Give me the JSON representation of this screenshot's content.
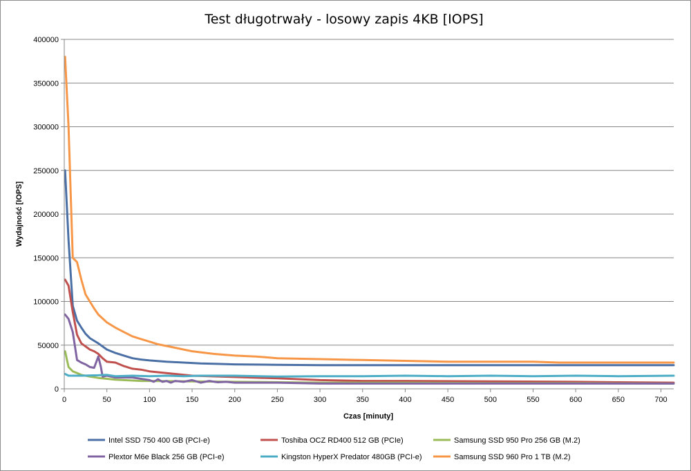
{
  "chart_data": {
    "type": "line",
    "title": "Test długotrwały - losowy zapis 4KB [IOPS]",
    "xlabel": "Czas [minuty]",
    "ylabel": "Wydajność [IOPS]",
    "xlim": [
      0,
      715
    ],
    "ylim": [
      0,
      400000
    ],
    "x_ticks": [
      0,
      50,
      100,
      150,
      200,
      250,
      300,
      350,
      400,
      450,
      500,
      550,
      600,
      650,
      700
    ],
    "y_ticks": [
      0,
      50000,
      100000,
      150000,
      200000,
      250000,
      300000,
      350000,
      400000
    ],
    "grid": "horizontal",
    "legend_position": "bottom",
    "series": [
      {
        "name": "Intel SSD 750 400 GB (PCI-e)",
        "color": "#4a6fa5",
        "points": [
          [
            1,
            250000
          ],
          [
            5,
            170000
          ],
          [
            10,
            95000
          ],
          [
            15,
            78000
          ],
          [
            20,
            70000
          ],
          [
            25,
            63000
          ],
          [
            30,
            58000
          ],
          [
            40,
            52000
          ],
          [
            50,
            45000
          ],
          [
            60,
            41000
          ],
          [
            70,
            38000
          ],
          [
            80,
            35000
          ],
          [
            90,
            33500
          ],
          [
            100,
            32500
          ],
          [
            120,
            31000
          ],
          [
            140,
            30000
          ],
          [
            160,
            29000
          ],
          [
            180,
            28500
          ],
          [
            200,
            28000
          ],
          [
            250,
            27500
          ],
          [
            300,
            27000
          ],
          [
            400,
            27000
          ],
          [
            500,
            27000
          ],
          [
            600,
            27000
          ],
          [
            715,
            27000
          ]
        ]
      },
      {
        "name": "Toshiba OCZ RD400 512 GB (PCIe)",
        "color": "#c0504d",
        "points": [
          [
            1,
            125000
          ],
          [
            5,
            118000
          ],
          [
            10,
            88000
          ],
          [
            15,
            62000
          ],
          [
            20,
            52000
          ],
          [
            30,
            45000
          ],
          [
            35,
            43000
          ],
          [
            40,
            40000
          ],
          [
            45,
            35000
          ],
          [
            50,
            31000
          ],
          [
            60,
            30000
          ],
          [
            70,
            26000
          ],
          [
            80,
            23000
          ],
          [
            90,
            22000
          ],
          [
            100,
            20000
          ],
          [
            120,
            18000
          ],
          [
            150,
            15000
          ],
          [
            200,
            13500
          ],
          [
            250,
            12000
          ],
          [
            300,
            10000
          ],
          [
            350,
            9000
          ],
          [
            400,
            9000
          ],
          [
            500,
            8500
          ],
          [
            600,
            8000
          ],
          [
            650,
            7500
          ],
          [
            715,
            7000
          ]
        ]
      },
      {
        "name": "Samsung SSD 950 Pro 256 GB (M.2)",
        "color": "#9bbb59",
        "points": [
          [
            1,
            43000
          ],
          [
            5,
            25000
          ],
          [
            10,
            20000
          ],
          [
            15,
            18000
          ],
          [
            20,
            16000
          ],
          [
            30,
            14000
          ],
          [
            40,
            12500
          ],
          [
            50,
            11500
          ],
          [
            60,
            10500
          ],
          [
            70,
            10000
          ],
          [
            80,
            9500
          ],
          [
            90,
            9000
          ],
          [
            100,
            9000
          ],
          [
            150,
            8500
          ],
          [
            200,
            8000
          ],
          [
            300,
            7000
          ],
          [
            400,
            7000
          ],
          [
            500,
            6500
          ],
          [
            600,
            6500
          ],
          [
            715,
            6000
          ]
        ]
      },
      {
        "name": "Plextor M6e Black 256 GB (PCI-e)",
        "color": "#8064a2",
        "points": [
          [
            1,
            85000
          ],
          [
            5,
            80000
          ],
          [
            10,
            65000
          ],
          [
            15,
            33000
          ],
          [
            20,
            30000
          ],
          [
            25,
            28000
          ],
          [
            30,
            25000
          ],
          [
            35,
            24000
          ],
          [
            40,
            37000
          ],
          [
            43,
            25000
          ],
          [
            45,
            14000
          ],
          [
            50,
            15000
          ],
          [
            60,
            13000
          ],
          [
            80,
            13000
          ],
          [
            100,
            10000
          ],
          [
            105,
            8000
          ],
          [
            110,
            11000
          ],
          [
            115,
            8000
          ],
          [
            120,
            9000
          ],
          [
            125,
            7000
          ],
          [
            130,
            9000
          ],
          [
            140,
            8000
          ],
          [
            150,
            10000
          ],
          [
            160,
            7000
          ],
          [
            170,
            9000
          ],
          [
            180,
            7500
          ],
          [
            190,
            8000
          ],
          [
            200,
            7000
          ],
          [
            250,
            7000
          ],
          [
            300,
            6000
          ],
          [
            400,
            6000
          ],
          [
            500,
            6000
          ],
          [
            600,
            6000
          ],
          [
            715,
            6000
          ]
        ]
      },
      {
        "name": "Kingston HyperX Predator 480GB (PCI-e)",
        "color": "#4bacc6",
        "points": [
          [
            1,
            17000
          ],
          [
            5,
            15000
          ],
          [
            20,
            15000
          ],
          [
            40,
            15500
          ],
          [
            50,
            16000
          ],
          [
            60,
            14500
          ],
          [
            80,
            15000
          ],
          [
            100,
            14500
          ],
          [
            120,
            15000
          ],
          [
            140,
            14500
          ],
          [
            160,
            15000
          ],
          [
            200,
            15000
          ],
          [
            250,
            14000
          ],
          [
            300,
            14500
          ],
          [
            350,
            14500
          ],
          [
            400,
            15000
          ],
          [
            450,
            14500
          ],
          [
            500,
            15000
          ],
          [
            550,
            14500
          ],
          [
            600,
            15000
          ],
          [
            650,
            14500
          ],
          [
            715,
            15000
          ]
        ]
      },
      {
        "name": "Samsung SSD 960 Pro 1 TB (M.2)",
        "color": "#f79646",
        "points": [
          [
            1,
            380000
          ],
          [
            5,
            300000
          ],
          [
            10,
            150000
          ],
          [
            15,
            145000
          ],
          [
            20,
            125000
          ],
          [
            25,
            108000
          ],
          [
            30,
            100000
          ],
          [
            35,
            92000
          ],
          [
            40,
            85000
          ],
          [
            50,
            76000
          ],
          [
            60,
            70000
          ],
          [
            70,
            65000
          ],
          [
            80,
            60000
          ],
          [
            90,
            57000
          ],
          [
            100,
            54000
          ],
          [
            110,
            51000
          ],
          [
            120,
            49000
          ],
          [
            130,
            47000
          ],
          [
            140,
            45000
          ],
          [
            150,
            43000
          ],
          [
            175,
            40000
          ],
          [
            200,
            38000
          ],
          [
            225,
            37000
          ],
          [
            250,
            35000
          ],
          [
            300,
            34000
          ],
          [
            350,
            33000
          ],
          [
            400,
            32000
          ],
          [
            450,
            31000
          ],
          [
            500,
            31000
          ],
          [
            550,
            31000
          ],
          [
            580,
            30000
          ],
          [
            600,
            30000
          ],
          [
            715,
            30000
          ]
        ]
      }
    ]
  }
}
